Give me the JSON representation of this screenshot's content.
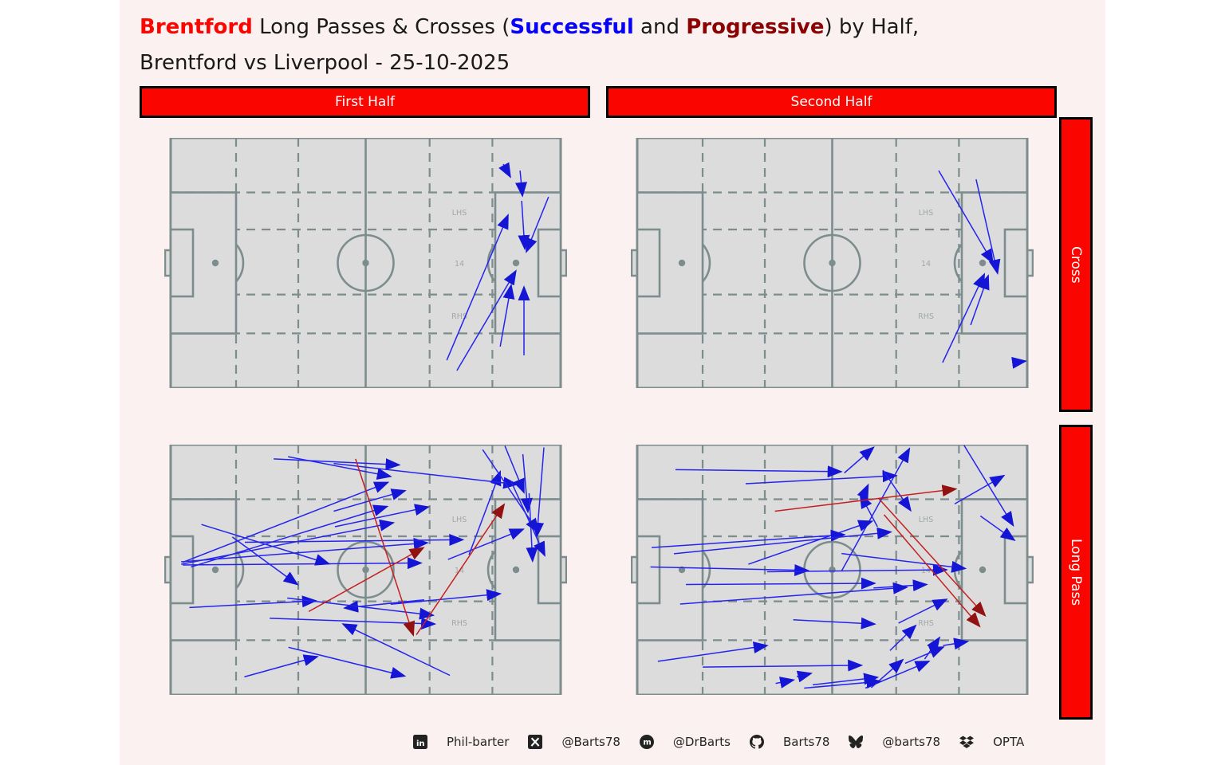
{
  "title": {
    "line1_parts": [
      {
        "text": "Brentford",
        "color": "#fb0500",
        "bold": true
      },
      {
        "text": " Long Passes & Crosses (",
        "color": "#1a1a1a",
        "bold": false
      },
      {
        "text": "Successful",
        "color": "#0400f9",
        "bold": true
      },
      {
        "text": " and ",
        "color": "#1a1a1a",
        "bold": false
      },
      {
        "text": "Progressive",
        "color": "#8b0000",
        "bold": true
      },
      {
        "text": ") by Half,",
        "color": "#1a1a1a",
        "bold": false
      }
    ],
    "line2": "Brentford vs Liverpool - 25-10-2025"
  },
  "column_headers": [
    {
      "label": "First Half"
    },
    {
      "label": "Second Half"
    }
  ],
  "row_headers": [
    {
      "label": "Cross"
    },
    {
      "label": "Long Pass"
    }
  ],
  "pitch_zone_labels": [
    "LHS",
    "14",
    "RHS"
  ],
  "colors": {
    "background": "#fcf1f1",
    "bar_red": "#fb0500",
    "pitch_fill": "#dcdcdc",
    "pitch_line": "#7d8c8c",
    "zone_label": "#a0a8a8",
    "successful_line": "#2424ee",
    "successful_head": "#1515d6",
    "progressive_line": "#c42020",
    "progressive_head": "#921212"
  },
  "legend": {
    "successful_color_meaning": "Successful",
    "progressive_color_meaning": "Progressive"
  },
  "footer": {
    "items": [
      {
        "icon": "linkedin-icon",
        "label": "Phil-barter"
      },
      {
        "icon": "x-icon",
        "label": "@Barts78"
      },
      {
        "icon": "mastodon-icon",
        "label": "@DrBarts"
      },
      {
        "icon": "github-icon",
        "label": "Barts78"
      },
      {
        "icon": "bluesky-icon",
        "label": "@barts78"
      },
      {
        "icon": "dropbox-icon",
        "label": "OPTA"
      }
    ]
  },
  "chart_data": {
    "type": "scatter",
    "subtype": "pass-arrow-pitch-map",
    "title": "Brentford Long Passes & Crosses (Successful and Progressive) by Half, Brentford vs Liverpool - 25-10-2025",
    "coords_note": "Each arrow [x1,y1,x2,y2] in % of pitch; x 0=own goal line, 100=opponent goal line (attacking left to right); y 0=top touchline, 100=bottom touchline",
    "panels": [
      {
        "row": "Cross",
        "col": "First Half",
        "successful": [
          [
            85.3,
            10.5,
            87.1,
            15.6
          ],
          [
            89.6,
            13.1,
            90.2,
            23.2
          ],
          [
            96.9,
            23.6,
            91.2,
            45.5
          ],
          [
            90.0,
            25.2,
            90.8,
            44.3
          ],
          [
            70.8,
            88.9,
            86.5,
            30.9
          ],
          [
            73.4,
            93.0,
            88.5,
            53.2
          ],
          [
            84.5,
            83.4,
            87.3,
            58.9
          ],
          [
            90.6,
            86.9,
            90.6,
            59.6
          ]
        ],
        "progressive": []
      },
      {
        "row": "Cross",
        "col": "Second Half",
        "successful": [
          [
            77.3,
            13.1,
            91.2,
            50.0
          ],
          [
            86.9,
            16.6,
            92.4,
            54.1
          ],
          [
            85.5,
            74.8,
            90.0,
            55.1
          ],
          [
            78.3,
            89.8,
            89.0,
            54.5
          ],
          [
            96.7,
            89.8,
            99.6,
            89.2
          ]
        ],
        "progressive": []
      },
      {
        "row": "Long Pass",
        "col": "First Half",
        "successful": [
          [
            26.4,
            5.7,
            58.6,
            8.1
          ],
          [
            30.1,
            4.8,
            56.4,
            12.7
          ],
          [
            3.1,
            47.0,
            55.7,
            15.1
          ],
          [
            41.8,
            26.6,
            60.1,
            18.4
          ],
          [
            5.2,
            48.9,
            55.5,
            24.7
          ],
          [
            42.1,
            32.8,
            66.1,
            24.9
          ],
          [
            2.7,
            47.8,
            57.1,
            31.2
          ],
          [
            2.7,
            46.8,
            65.8,
            39.2
          ],
          [
            19.0,
            39.0,
            74.9,
            38.0
          ],
          [
            3.1,
            48.1,
            64.2,
            47.3
          ],
          [
            7.9,
            31.9,
            40.6,
            47.6
          ],
          [
            15.8,
            36.9,
            32.5,
            55.9
          ],
          [
            4.8,
            65.1,
            37.2,
            62.4
          ],
          [
            65.0,
            62.0,
            44.6,
            65.3
          ],
          [
            71.6,
            92.2,
            44.2,
            71.7
          ],
          [
            29.9,
            61.3,
            67.3,
            68.2
          ],
          [
            25.4,
            69.4,
            67.7,
            71.7
          ],
          [
            56.4,
            63.8,
            84.5,
            59.6
          ],
          [
            71.1,
            45.9,
            90.4,
            33.8
          ],
          [
            76.5,
            44.0,
            84.5,
            10.8
          ],
          [
            41.8,
            7.5,
            88.8,
            15.9
          ],
          [
            85.7,
            0.5,
            90.6,
            19.1
          ],
          [
            90.3,
            3.8,
            91.6,
            26.8
          ],
          [
            95.7,
            1.1,
            93.9,
            36.6
          ],
          [
            87.3,
            14.7,
            95.9,
            44.3
          ],
          [
            91.9,
            19.4,
            92.8,
            46.5
          ],
          [
            80.0,
            2.0,
            94.3,
            35.0
          ],
          [
            18.9,
            92.8,
            37.6,
            84.7
          ],
          [
            30.2,
            81.0,
            60.0,
            92.5
          ]
        ],
        "progressive": [
          [
            35.4,
            66.7,
            64.8,
            41.2
          ],
          [
            47.4,
            5.7,
            62.2,
            76.1
          ],
          [
            63.0,
            76.0,
            85.5,
            23.9
          ]
        ]
      },
      {
        "row": "Long Pass",
        "col": "Second Half",
        "successful": [
          [
            53.1,
            11.3,
            60.6,
            1.1
          ],
          [
            52.4,
            50.5,
            69.8,
            1.6
          ],
          [
            9.8,
            10.0,
            52.3,
            10.8
          ],
          [
            27.8,
            15.6,
            66.4,
            12.4
          ],
          [
            57.5,
            22.0,
            59.2,
            16.1
          ],
          [
            61.6,
            32.8,
            57.2,
            19.9
          ],
          [
            63.0,
            10.2,
            70.1,
            26.3
          ],
          [
            28.5,
            47.8,
            60.2,
            30.6
          ],
          [
            81.4,
            23.7,
            94.0,
            12.4
          ],
          [
            83.8,
            0.3,
            96.4,
            32.3
          ],
          [
            88.0,
            28.5,
            96.7,
            38.2
          ],
          [
            3.7,
            41.1,
            53.1,
            36.0
          ],
          [
            9.4,
            43.6,
            65.0,
            34.9
          ],
          [
            3.4,
            48.9,
            43.8,
            50.3
          ],
          [
            33.3,
            50.8,
            79.3,
            50.0
          ],
          [
            52.4,
            43.5,
            84.1,
            49.5
          ],
          [
            12.5,
            55.9,
            60.9,
            55.4
          ],
          [
            60.6,
            57.3,
            74.2,
            55.9
          ],
          [
            11.0,
            63.7,
            69.1,
            57.0
          ],
          [
            67.0,
            71.3,
            79.3,
            61.8
          ],
          [
            40.0,
            70.0,
            60.9,
            71.7
          ],
          [
            64.8,
            82.3,
            71.4,
            72.3
          ],
          [
            73.7,
            85.7,
            77.5,
            77.1
          ],
          [
            68.7,
            87.4,
            78.5,
            80.9
          ],
          [
            78.4,
            80.3,
            84.7,
            78.7
          ],
          [
            5.3,
            86.6,
            33.3,
            80.3
          ],
          [
            16.8,
            88.9,
            57.5,
            88.2
          ],
          [
            60.0,
            97.1,
            68.1,
            86.0
          ],
          [
            58.5,
            97.3,
            74.8,
            86.6
          ],
          [
            35.5,
            95.4,
            40.1,
            94.0
          ],
          [
            40.9,
            92.8,
            44.6,
            91.4
          ],
          [
            42.8,
            97.3,
            62.3,
            94.6
          ],
          [
            45.0,
            96.0,
            61.6,
            93.0
          ]
        ],
        "progressive": [
          [
            35.3,
            26.6,
            81.7,
            17.7
          ],
          [
            61.9,
            21.5,
            89.2,
            68.3
          ],
          [
            63.3,
            28.0,
            87.8,
            72.6
          ]
        ]
      }
    ]
  }
}
